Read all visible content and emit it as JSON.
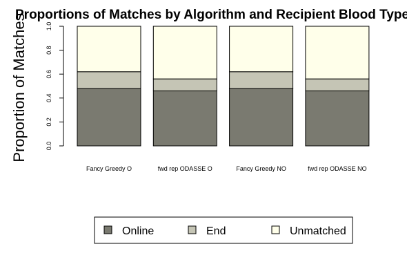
{
  "chart_data": {
    "type": "bar",
    "stacked": true,
    "title": "Proportions of Matches by Algorithm and Recipient Blood Type",
    "xlabel": "",
    "ylabel": "Proportion of Matches",
    "ylim": [
      0,
      1
    ],
    "yticks": [
      "0.0",
      "0.2",
      "0.4",
      "0.6",
      "0.8",
      "1.0"
    ],
    "categories": [
      "Fancy Greedy O",
      "fwd rep ODASSE O",
      "Fancy Greedy NO",
      "fwd rep ODASSE NO"
    ],
    "series": [
      {
        "name": "Online",
        "color": "#7a7a70",
        "values": [
          0.48,
          0.46,
          0.48,
          0.46
        ]
      },
      {
        "name": "End",
        "color": "#c5c5b5",
        "values": [
          0.14,
          0.1,
          0.14,
          0.1
        ]
      },
      {
        "name": "Unmatched",
        "color": "#ffffea",
        "values": [
          0.38,
          0.44,
          0.38,
          0.44
        ]
      }
    ],
    "legend_position": "bottom-center",
    "grid": false
  }
}
